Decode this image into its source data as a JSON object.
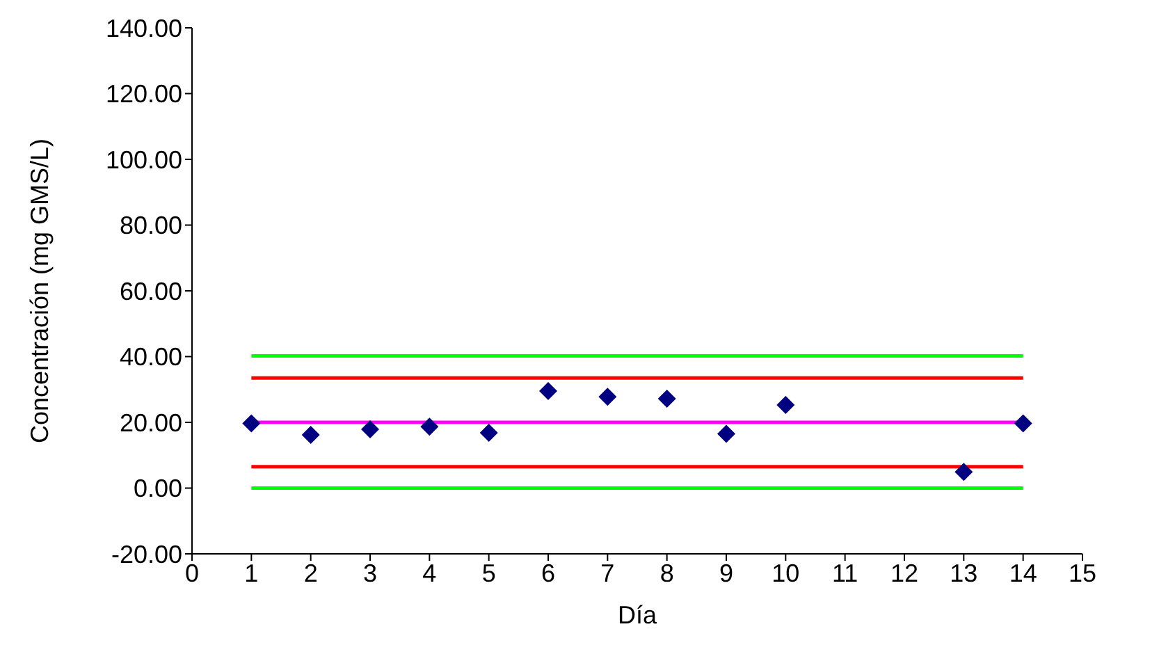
{
  "chart_data": {
    "type": "scatter",
    "xlabel": "Día",
    "ylabel": "Concentración (mg GMS/L)",
    "xlim": [
      0,
      15
    ],
    "xticks": [
      0,
      1,
      2,
      3,
      4,
      5,
      6,
      7,
      8,
      9,
      10,
      11,
      12,
      13,
      14,
      15
    ],
    "ylim": [
      -20,
      140
    ],
    "yticks": [
      {
        "value": -20,
        "label": "-20.00"
      },
      {
        "value": 0,
        "label": "0.00"
      },
      {
        "value": 20,
        "label": "20.00"
      },
      {
        "value": 40,
        "label": "40.00"
      },
      {
        "value": 60,
        "label": "60.00"
      },
      {
        "value": 80,
        "label": "80.00"
      },
      {
        "value": 100,
        "label": "100.00"
      },
      {
        "value": 120,
        "label": "120.00"
      },
      {
        "value": 140,
        "label": "140.00"
      }
    ],
    "grid": false,
    "legend": false,
    "series": [
      {
        "type": "line",
        "color": "#00ff00",
        "x": [
          1,
          14
        ],
        "values": [
          40.2,
          40.2
        ],
        "marker": "none"
      },
      {
        "type": "line",
        "color": "#ff0000",
        "x": [
          1,
          14
        ],
        "values": [
          33.5,
          33.5
        ],
        "marker": "none"
      },
      {
        "type": "line",
        "color": "#ff00ff",
        "x": [
          1,
          14
        ],
        "values": [
          20,
          20
        ],
        "marker": "none"
      },
      {
        "type": "line",
        "color": "#ff0000",
        "x": [
          1,
          14
        ],
        "values": [
          6.5,
          6.5
        ],
        "marker": "none"
      },
      {
        "type": "line",
        "color": "#00ff00",
        "x": [
          1,
          14
        ],
        "values": [
          0,
          0
        ],
        "marker": "none"
      },
      {
        "color": "#000080",
        "marker": "diamond",
        "x": [
          1,
          2,
          3,
          4,
          5,
          6,
          7,
          8,
          9,
          10,
          13,
          14
        ],
        "values": [
          19.7,
          16.2,
          17.9,
          18.7,
          16.8,
          29.5,
          27.8,
          27.2,
          16.5,
          25.3,
          4.9,
          19.7
        ]
      }
    ]
  }
}
